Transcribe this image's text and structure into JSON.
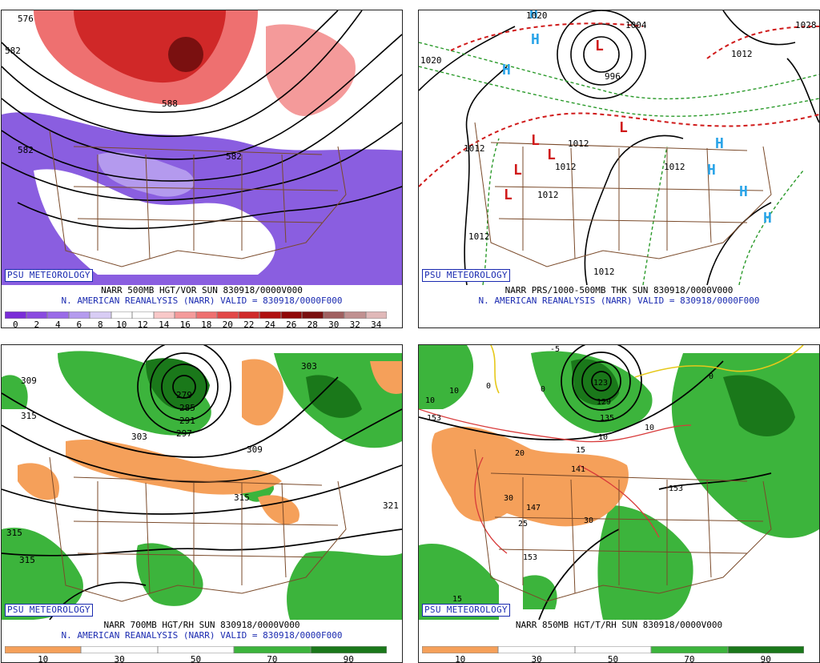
{
  "panels": [
    {
      "id": "p1",
      "badge": "PSU METEOROLOGY",
      "line1": "NARR 500MB HGT/VOR SUN 830918/0000V000",
      "line2": "N. AMERICAN REANALYSIS (NARR) VALID = 830918/0000F000",
      "map_labels": [
        "576",
        "582",
        "582",
        "582",
        "588"
      ],
      "colorbar": {
        "ticks": [
          "0",
          "2",
          "4",
          "6",
          "8",
          "10",
          "12",
          "14",
          "16",
          "18",
          "20",
          "22",
          "24",
          "26",
          "28",
          "30",
          "32",
          "34"
        ],
        "colors": [
          "#7a2cd8",
          "#8a4ae0",
          "#9a6ae8",
          "#b49aee",
          "#d8ccf4",
          "#ffffff",
          "#ffffff",
          "#f8c8c8",
          "#f49a9a",
          "#ee7070",
          "#e24848",
          "#d02828",
          "#b01010",
          "#900808",
          "#7a1010",
          "#a06060",
          "#c09090",
          "#e0b8b8"
        ]
      }
    },
    {
      "id": "p2",
      "badge": "PSU METEOROLOGY",
      "line1": "NARR PRS/1000-500MB THK SUN 830918/0000V000",
      "line2": "N. AMERICAN REANALYSIS (NARR) VALID = 830918/0000F000",
      "map_labels": [
        "1020",
        "1020",
        "1004",
        "996",
        "1012",
        "1012",
        "1012",
        "1012",
        "1012",
        "1012",
        "1012",
        "1012",
        "1028"
      ],
      "symbols": {
        "high": "H",
        "low": "L"
      }
    },
    {
      "id": "p3",
      "badge": "PSU METEOROLOGY",
      "line1": "NARR 700MB HGT/RH SUN 830918/0000V000",
      "line2": "N. AMERICAN REANALYSIS (NARR) VALID = 830918/0000F000",
      "map_labels": [
        "309",
        "315",
        "279",
        "285",
        "291",
        "297",
        "303",
        "303",
        "309",
        "315",
        "321",
        "315",
        "315"
      ],
      "colorbar": {
        "ticks": [
          "10",
          "30",
          "50",
          "70",
          "90"
        ],
        "colors": [
          "#f5a05a",
          "#ffffff",
          "#ffffff",
          "#3cb43c",
          "#1a781a"
        ]
      }
    },
    {
      "id": "p4",
      "badge": "PSU METEOROLOGY",
      "line1": "NARR 850MB HGT/T/RH SUN 830918/0000V000",
      "line2": "",
      "map_labels": [
        "-5",
        "10",
        "10",
        "0",
        "0",
        "0",
        "123",
        "129",
        "135",
        "153",
        "10",
        "10",
        "20",
        "15",
        "141",
        "30",
        "147",
        "30",
        "25",
        "153",
        "153",
        "15"
      ],
      "colorbar": {
        "ticks": [
          "10",
          "30",
          "50",
          "70",
          "90"
        ],
        "colors": [
          "#f5a05a",
          "#ffffff",
          "#ffffff",
          "#3cb43c",
          "#1a781a"
        ]
      }
    }
  ]
}
